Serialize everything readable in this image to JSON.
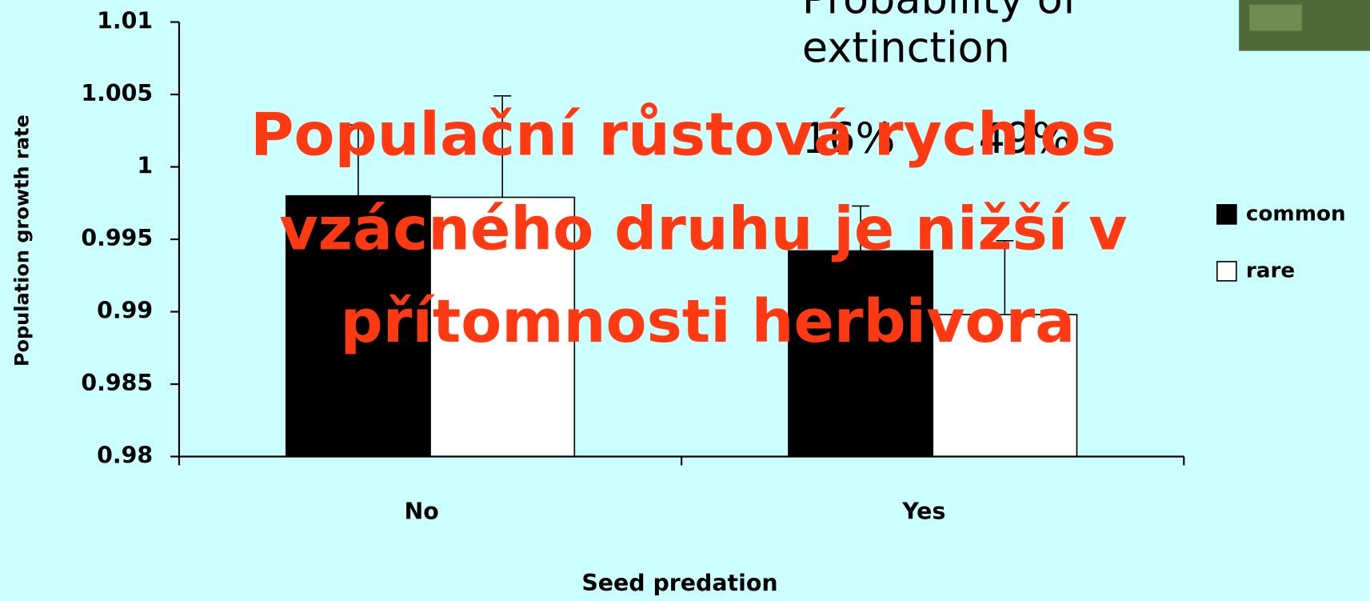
{
  "chart_data": {
    "type": "bar",
    "categories": [
      "No",
      "Yes"
    ],
    "series": [
      {
        "name": "common",
        "color": "#000000",
        "values": [
          0.998,
          0.9942
        ],
        "errors": [
          0.0049,
          0.0031
        ]
      },
      {
        "name": "rare",
        "color": "#ffffff",
        "values": [
          0.9979,
          0.9898
        ],
        "errors": [
          0.007,
          0.0051
        ]
      }
    ],
    "xlabel": "Seed predation",
    "ylabel": "Population growth rate",
    "ylim": [
      0.98,
      1.01
    ],
    "yticks": [
      0.98,
      0.985,
      0.99,
      0.995,
      1,
      1.005,
      1.01
    ],
    "legend": "right"
  },
  "annotation": {
    "heading": [
      "Probability of",
      "extinction"
    ],
    "percents": [
      "16%",
      "49%"
    ]
  },
  "overlay": [
    "Populační růstová rychlos",
    "vzácného druhu je nižší v",
    "přítomnosti herbivora"
  ]
}
